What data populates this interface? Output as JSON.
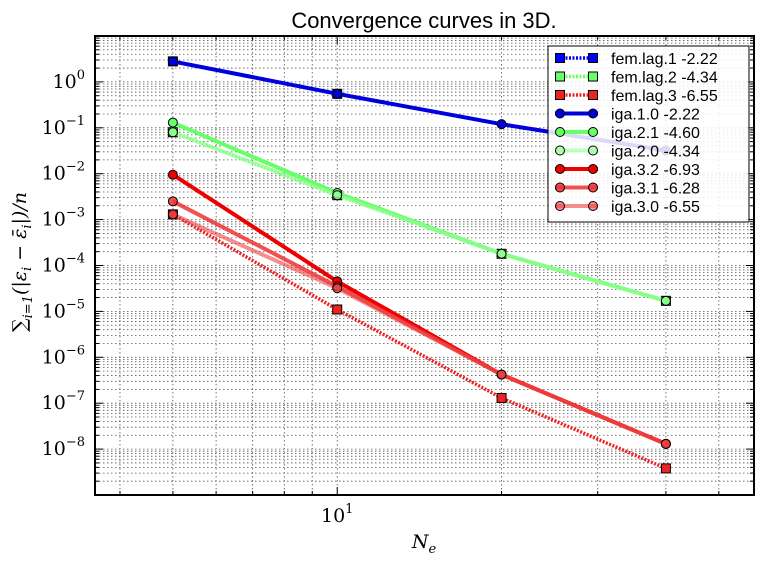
{
  "chart_data": {
    "type": "line",
    "title": "Convergence curves in 3D.",
    "xlabel": "N_e",
    "ylabel": "sum_{i=1}^{n} (|epsilon_i - bar-epsilon_i|)/n",
    "xscale": "log",
    "yscale": "log",
    "xlim": [
      3.6,
      58
    ],
    "ylim": [
      1e-09,
      10
    ],
    "xticks": [
      {
        "value": 10,
        "base": "10",
        "exp": "1"
      }
    ],
    "yticks": [
      {
        "value": 1,
        "base": "10",
        "exp": "0"
      },
      {
        "value": 0.1,
        "base": "10",
        "exp": "−1"
      },
      {
        "value": 0.01,
        "base": "10",
        "exp": "−2"
      },
      {
        "value": 0.001,
        "base": "10",
        "exp": "−3"
      },
      {
        "value": 0.0001,
        "base": "10",
        "exp": "−4"
      },
      {
        "value": 1e-05,
        "base": "10",
        "exp": "−5"
      },
      {
        "value": 1e-06,
        "base": "10",
        "exp": "−6"
      },
      {
        "value": 1e-07,
        "base": "10",
        "exp": "−7"
      },
      {
        "value": 1e-08,
        "base": "10",
        "exp": "−8"
      }
    ],
    "grid": true,
    "legend_position": "top-right",
    "series": [
      {
        "name": "fem.lag.1 -2.22",
        "color": "#0000ff",
        "marker": "square",
        "linestyle": "dotted",
        "alpha": 1.0,
        "x": [
          5,
          10
        ],
        "y": [
          2.8,
          0.55
        ]
      },
      {
        "name": "fem.lag.2 -4.34",
        "color": "#66ff66",
        "marker": "square",
        "linestyle": "dotted",
        "alpha": 1.0,
        "x": [
          5,
          10,
          20,
          40
        ],
        "y": [
          0.08,
          0.0034,
          0.00018,
          1.7e-05
        ]
      },
      {
        "name": "fem.lag.3 -6.55",
        "color": "#ee2222",
        "marker": "square",
        "linestyle": "dotted",
        "alpha": 1.0,
        "x": [
          5,
          10,
          20,
          40
        ],
        "y": [
          0.0013,
          1.1e-05,
          1.3e-07,
          3.8e-09
        ]
      },
      {
        "name": "iga.1.0 -2.22",
        "color": "#0000dd",
        "marker": "circle",
        "linestyle": "solid",
        "alpha": 1.0,
        "x": [
          5,
          10,
          20,
          40
        ],
        "y": [
          2.8,
          0.55,
          0.12,
          0.032
        ]
      },
      {
        "name": "iga.2.1 -4.60",
        "color": "#66ff66",
        "marker": "circle",
        "linestyle": "solid",
        "alpha": 1.0,
        "x": [
          5,
          10,
          20,
          40
        ],
        "y": [
          0.13,
          0.0038,
          0.00018,
          1.7e-05
        ]
      },
      {
        "name": "iga.2.0 -4.34",
        "color": "#99ff99",
        "marker": "circle",
        "linestyle": "solid",
        "alpha": 0.65,
        "x": [
          5,
          10,
          20,
          40
        ],
        "y": [
          0.08,
          0.0034,
          0.00018,
          1.7e-05
        ]
      },
      {
        "name": "iga.3.2 -6.93",
        "color": "#ee0000",
        "marker": "circle",
        "linestyle": "solid",
        "alpha": 1.0,
        "x": [
          5,
          10,
          20,
          40
        ],
        "y": [
          0.0095,
          4.5e-05,
          4.2e-07,
          1.3e-08
        ]
      },
      {
        "name": "iga.3.1 -6.28",
        "color": "#ee3333",
        "marker": "circle",
        "linestyle": "solid",
        "alpha": 0.85,
        "x": [
          5,
          10,
          20,
          40
        ],
        "y": [
          0.0025,
          3.5e-05,
          4.2e-07,
          1.3e-08
        ]
      },
      {
        "name": "iga.3.0 -6.55",
        "color": "#ee4444",
        "marker": "circle",
        "linestyle": "solid",
        "alpha": 0.6,
        "x": [
          5,
          10,
          20,
          40
        ],
        "y": [
          0.0013,
          3.2e-05,
          4.2e-07,
          1.3e-08
        ]
      }
    ]
  }
}
